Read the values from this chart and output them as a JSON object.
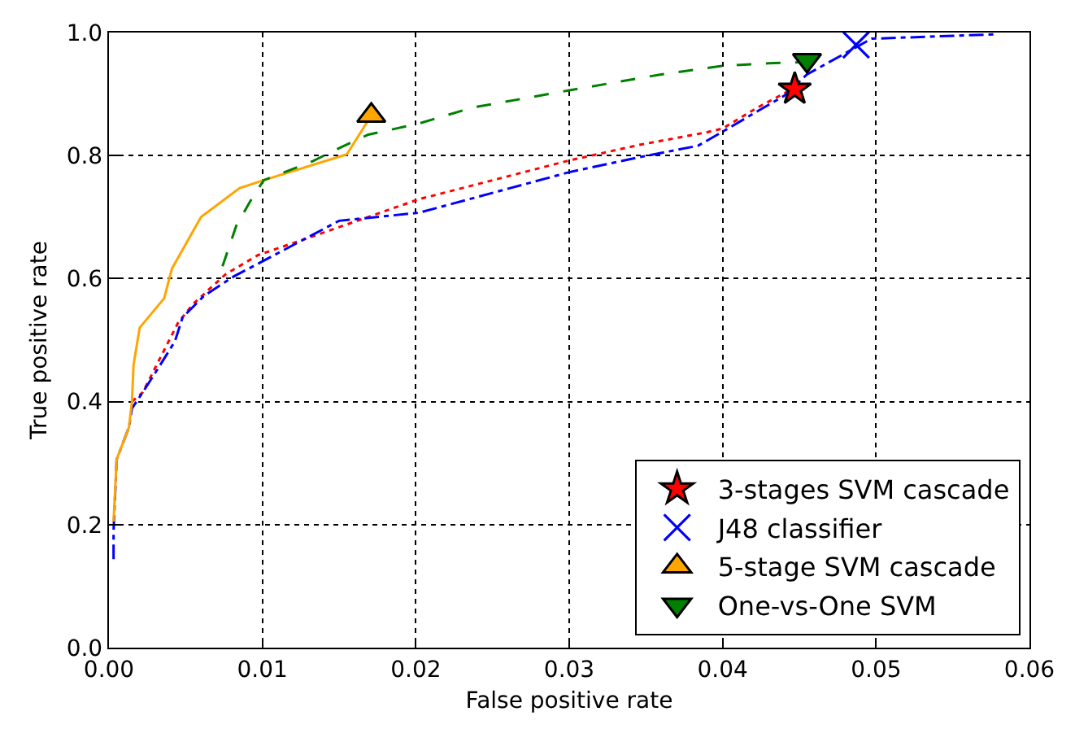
{
  "chart_data": {
    "type": "line",
    "xlabel": "False positive rate",
    "ylabel": "True positive rate",
    "xlim": [
      0,
      0.06
    ],
    "ylim": [
      0,
      1
    ],
    "xticks": [
      {
        "value": 0,
        "label": "0.00"
      },
      {
        "value": 0.01,
        "label": "0.01"
      },
      {
        "value": 0.02,
        "label": "0.02"
      },
      {
        "value": 0.03,
        "label": "0.03"
      },
      {
        "value": 0.04,
        "label": "0.04"
      },
      {
        "value": 0.05,
        "label": "0.05"
      },
      {
        "value": 0.06,
        "label": "0.06"
      }
    ],
    "yticks": [
      {
        "value": 0,
        "label": "0.0"
      },
      {
        "value": 0.2,
        "label": "0.2"
      },
      {
        "value": 0.4,
        "label": "0.4"
      },
      {
        "value": 0.6,
        "label": "0.6"
      },
      {
        "value": 0.8,
        "label": "0.8"
      },
      {
        "value": 1,
        "label": "1.0"
      }
    ],
    "grid": true,
    "legend": "bottom right",
    "series": [
      {
        "color": "#ff0000",
        "line_style": "dotted",
        "marker": "none",
        "x": [
          0.0015,
          0.0022,
          0.0045,
          0.0055,
          0.0076,
          0.0097,
          0.0132,
          0.0202,
          0.03,
          0.0345,
          0.039,
          0.04,
          0.0422,
          0.0443,
          0.0447
        ],
        "values": [
          0.4,
          0.415,
          0.528,
          0.559,
          0.607,
          0.638,
          0.668,
          0.729,
          0.792,
          0.817,
          0.838,
          0.844,
          0.877,
          0.905,
          0.908
        ]
      },
      {
        "color": "#0000ff",
        "line_style": "dashdot",
        "marker": "none",
        "x": [
          0.0003,
          0.0003,
          0.0005,
          0.0013,
          0.0015,
          0.0022,
          0.0031,
          0.0043,
          0.0048,
          0.0062,
          0.0081,
          0.0097,
          0.015,
          0.0202,
          0.03,
          0.0345,
          0.0384,
          0.0398,
          0.0422,
          0.044,
          0.0455,
          0.0487,
          0.0497,
          0.0577
        ],
        "values": [
          0.144,
          0.19,
          0.306,
          0.358,
          0.389,
          0.415,
          0.45,
          0.498,
          0.537,
          0.572,
          0.603,
          0.624,
          0.694,
          0.707,
          0.773,
          0.797,
          0.816,
          0.836,
          0.871,
          0.897,
          0.932,
          0.976,
          0.99,
          0.997
        ]
      },
      {
        "color": "#ffa500",
        "line_style": "solid",
        "marker": "none",
        "x": [
          0.0003,
          0.0005,
          0.0013,
          0.0015,
          0.0016,
          0.002,
          0.0036,
          0.0041,
          0.006,
          0.0085,
          0.0101,
          0.0155,
          0.0171
        ],
        "values": [
          0.205,
          0.306,
          0.358,
          0.4,
          0.459,
          0.52,
          0.568,
          0.616,
          0.7,
          0.747,
          0.76,
          0.802,
          0.865
        ]
      },
      {
        "color": "#008000",
        "line_style": "dashed",
        "marker": "none",
        "x": [
          0.0074,
          0.0083,
          0.0094,
          0.0101,
          0.0132,
          0.015,
          0.0169,
          0.0202,
          0.0237,
          0.03,
          0.036,
          0.04,
          0.043,
          0.0455
        ],
        "values": [
          0.62,
          0.686,
          0.734,
          0.76,
          0.79,
          0.812,
          0.834,
          0.852,
          0.878,
          0.906,
          0.932,
          0.946,
          0.95,
          0.952
        ]
      },
      {
        "type": "scatter",
        "name": "3-stages SVM cascade",
        "color": "#ff0000",
        "marker": "star",
        "x": [
          0.0447
        ],
        "values": [
          0.908
        ]
      },
      {
        "type": "scatter",
        "name": "J48 classifier",
        "color": "#0000ff",
        "marker": "cross",
        "x": [
          0.0487
        ],
        "values": [
          0.98
        ]
      },
      {
        "type": "scatter",
        "name": "5-stage SVM cascade",
        "color": "#ffa500",
        "marker": "triangle",
        "x": [
          0.0171
        ],
        "values": [
          0.865
        ]
      },
      {
        "type": "scatter",
        "name": "One-vs-One SVM",
        "color": "#008000",
        "marker": "triangle-down",
        "x": [
          0.0455
        ],
        "values": [
          0.955
        ]
      }
    ]
  }
}
